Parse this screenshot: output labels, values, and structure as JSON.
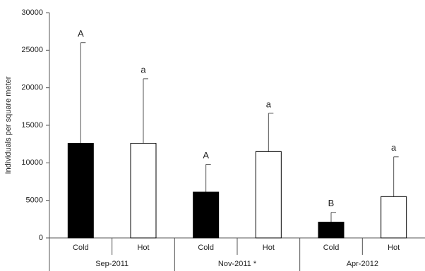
{
  "chart_data": {
    "type": "bar",
    "y_label": "Individuals per square meter",
    "categories": [
      "Sep-2011",
      "Nov-2011 *",
      "Apr-2012"
    ],
    "series": [
      {
        "name": "Cold",
        "color": "#000000",
        "values": [
          12600,
          6100,
          2100
        ],
        "errors": [
          13400,
          3700,
          1300
        ],
        "letters": [
          "A",
          "A",
          "B"
        ]
      },
      {
        "name": "Hot",
        "color": "#ffffff",
        "values": [
          12600,
          11500,
          5500
        ],
        "errors": [
          8600,
          5100,
          5300
        ],
        "letters": [
          "a",
          "a",
          "a"
        ]
      }
    ],
    "ylim": [
      0,
      30000
    ],
    "yticks": [
      0,
      5000,
      10000,
      15000,
      20000,
      25000,
      30000
    ],
    "grid": false
  }
}
